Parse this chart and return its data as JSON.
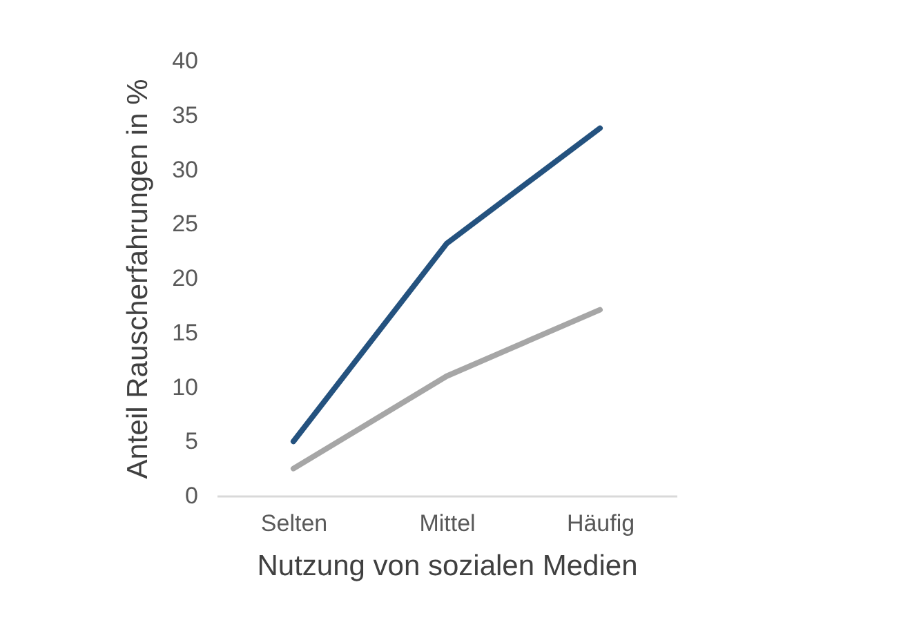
{
  "chart_data": {
    "type": "line",
    "xlabel": "Nutzung von sozialen Medien",
    "ylabel": "Anteil Rauscherfahrungen in %",
    "categories": [
      "Selten",
      "Mittel",
      "Häufig"
    ],
    "series": [
      {
        "color": "#24527f",
        "values": [
          5,
          23.2,
          33.8
        ]
      },
      {
        "color": "#a6a6a6",
        "values": [
          2.5,
          11,
          17.1
        ]
      }
    ],
    "ylim": [
      0,
      40
    ],
    "yticks": [
      0,
      5,
      10,
      15,
      20,
      25,
      30,
      35,
      40
    ],
    "grid": false,
    "legend": false,
    "marker": "none",
    "line_style": "solid"
  }
}
